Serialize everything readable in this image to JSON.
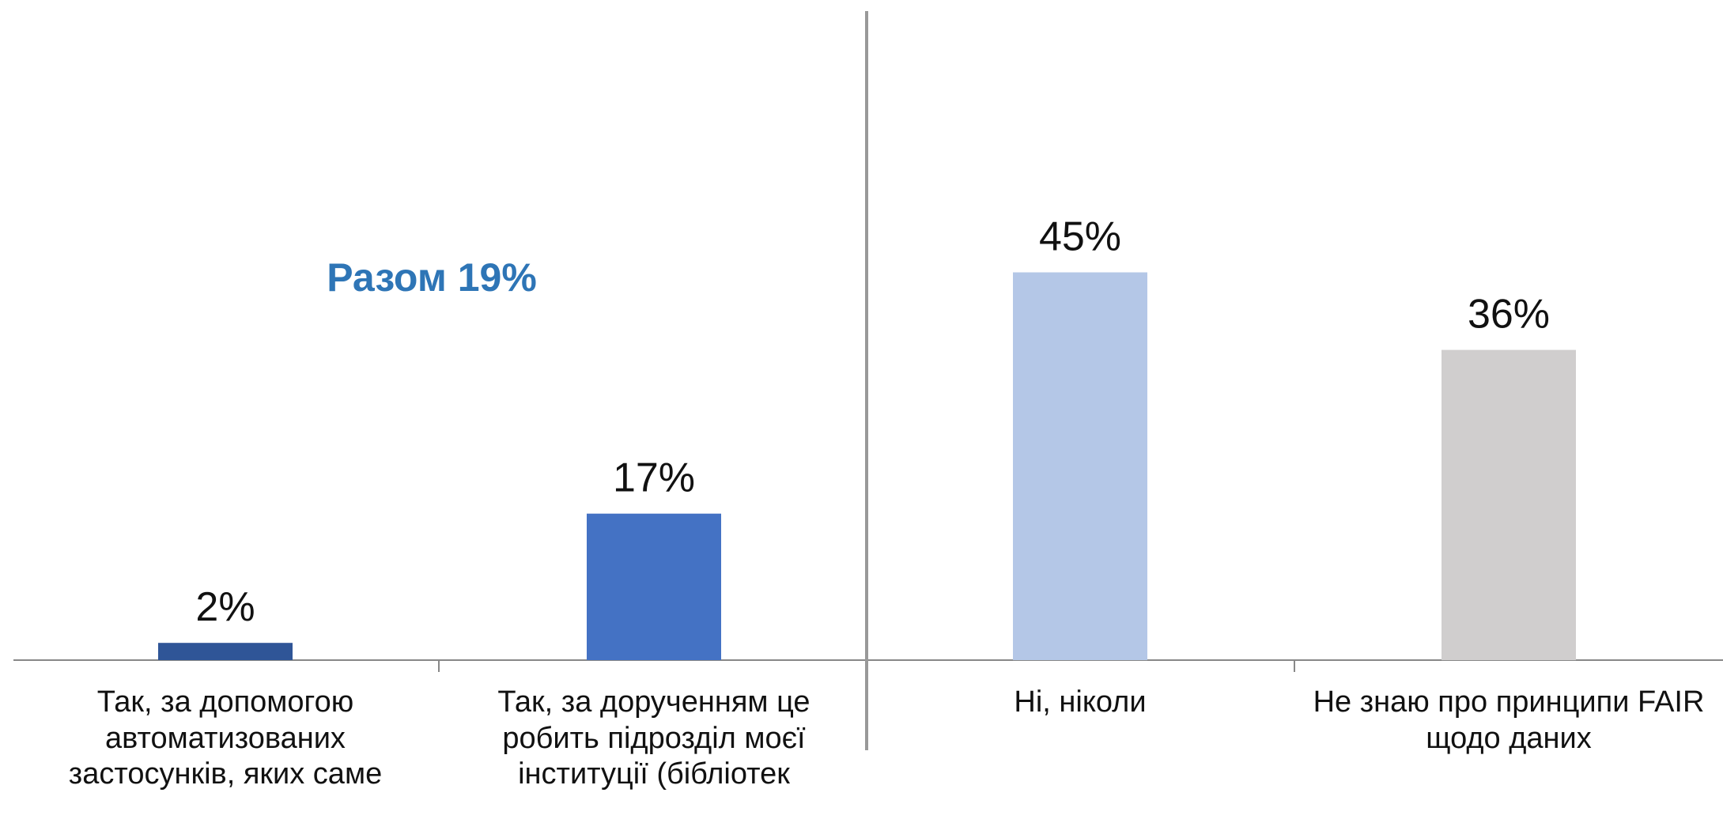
{
  "chart_data": {
    "type": "bar",
    "annotation": "Разом 19%",
    "categories": [
      "Так, за допомогою автоматизованих застосунків, яких саме",
      "Так, за дорученням це робить підрозділ моєї інституції (бібліотек",
      "Ні, ніколи",
      "Не знаю про принципи FAIR щодо даних"
    ],
    "values": [
      2,
      17,
      45,
      36
    ],
    "value_labels": [
      "2%",
      "17%",
      "45%",
      "36%"
    ],
    "colors": [
      "#2f5597",
      "#4472c4",
      "#b4c7e7",
      "#d0cece"
    ]
  }
}
